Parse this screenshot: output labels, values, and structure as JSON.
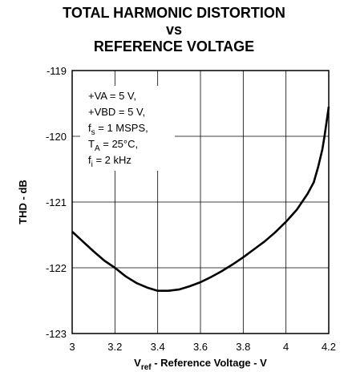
{
  "chart_data": {
    "type": "line",
    "title_lines": [
      "TOTAL HARMONIC DISTORTION",
      "vs",
      "REFERENCE VOLTAGE"
    ],
    "ylabel": "THD - dB",
    "xlabel_prefix": "V",
    "xlabel_sub": "ref",
    "xlabel_rest": " - Reference Voltage - V",
    "xlim": [
      3,
      4.2
    ],
    "ylim": [
      -123,
      -119
    ],
    "x_ticks": [
      "3",
      "3.2",
      "3.4",
      "3.6",
      "3.8",
      "4",
      "4.2"
    ],
    "y_ticks": [
      "-119",
      "-120",
      "-121",
      "-122",
      "-123"
    ],
    "grid": true,
    "annotation": [
      {
        "main": "+VA = 5 V,",
        "sub": "",
        "tail": ""
      },
      {
        "main": "+VBD = 5 V,",
        "sub": "",
        "tail": ""
      },
      {
        "main": "f",
        "sub": "s",
        "tail": " = 1 MSPS,"
      },
      {
        "main": "T",
        "sub": "A",
        "tail": " = 25°C,"
      },
      {
        "main": "f",
        "sub": "i",
        "tail": " = 2 kHz"
      }
    ],
    "series": [
      {
        "x": [
          3.0,
          3.05,
          3.1,
          3.15,
          3.2,
          3.25,
          3.3,
          3.35,
          3.4,
          3.45,
          3.5,
          3.55,
          3.6,
          3.65,
          3.7,
          3.75,
          3.8,
          3.85,
          3.9,
          3.95,
          4.0,
          4.05,
          4.1,
          4.13,
          4.15,
          4.17,
          4.18,
          4.19,
          4.2
        ],
        "y": [
          -121.45,
          -121.6,
          -121.75,
          -121.89,
          -122.0,
          -122.13,
          -122.23,
          -122.3,
          -122.35,
          -122.35,
          -122.33,
          -122.28,
          -122.22,
          -122.14,
          -122.05,
          -121.95,
          -121.84,
          -121.72,
          -121.6,
          -121.46,
          -121.3,
          -121.12,
          -120.88,
          -120.7,
          -120.47,
          -120.2,
          -120.0,
          -119.78,
          -119.55
        ]
      }
    ]
  }
}
